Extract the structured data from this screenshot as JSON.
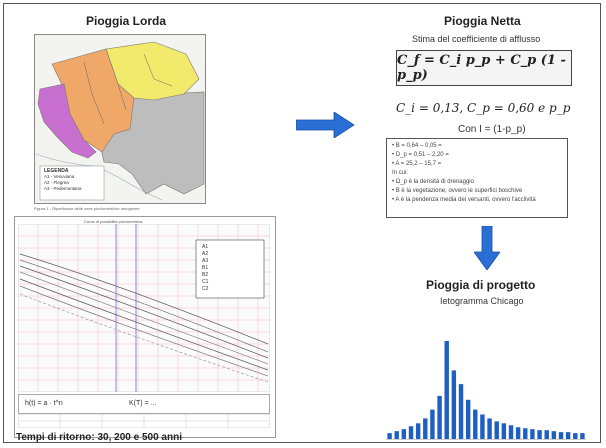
{
  "left": {
    "map_title": "Pioggia Lorda",
    "map_legend": {
      "title": "LEGENDA",
      "items": [
        "A1 - Vesuviana",
        "A2 - Flegrea",
        "A3 - Pedemontana"
      ],
      "colors": [
        "#c86fd0",
        "#f0a868",
        "#f2ea6a",
        "#bdbdbd"
      ]
    },
    "map_caption": "Figura 1 - Ripartizione delle zone pluviometriche omogenee",
    "chart_title": "Curve di possibilità pluviometrica",
    "chart_legend": [
      "A1",
      "A2",
      "A3",
      "B1",
      "B2",
      "C1",
      "C2"
    ],
    "formula_left": "h(t) = a · t^n",
    "formula_right": "K(T) = ...",
    "bottom_caption": "Tempi di ritorno: 30, 200 e 500 anni"
  },
  "right": {
    "title": "Pioggia Netta",
    "subtitle": "Stima del coefficiente di afflusso",
    "formula": "C_f = C_i p_p + C_p (1 - p_p)",
    "values_line": "C_i = 0,13,  C_p = 0,60  e  p_p",
    "con_line": "Con I = (1-p_p)",
    "notes": [
      "• B = 0,64 – 0,05 =",
      "• D_p = 0,51 – 2,20 =",
      "• A = 25,2 – 15,7 =",
      "In cui:",
      "• Ω_p è la densità di drenaggio",
      "• B è la vegetazione, ovvero le superfici boschive",
      "• A è la pendenza media dei versanti, ovvero l'acclività"
    ],
    "design_title": "Pioggia di progetto",
    "design_subtitle": "Ietogramma Chicago"
  },
  "hyetograph": {
    "type": "bar",
    "values": [
      6,
      8,
      10,
      13,
      16,
      21,
      30,
      44,
      100,
      70,
      56,
      40,
      30,
      25,
      21,
      18,
      16,
      14,
      12,
      11,
      10,
      9,
      9,
      8,
      7,
      7,
      6,
      6
    ],
    "color": "#1f5fc4"
  },
  "colors": {
    "arrow": "#2a6fd6"
  }
}
